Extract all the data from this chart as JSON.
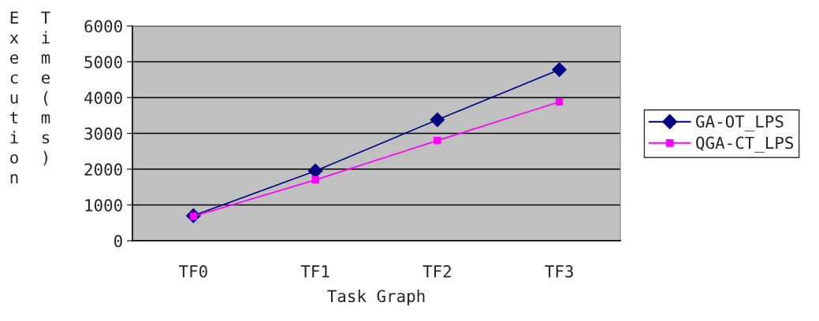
{
  "chart_data": {
    "type": "line",
    "xlabel": "Task Graph",
    "ylabel": "Execution Time(ms)",
    "categories": [
      "TF0",
      "TF1",
      "TF2",
      "TF3"
    ],
    "series": [
      {
        "name": "GA-OT_LPS",
        "color": "#000080",
        "marker": "diamond",
        "values": [
          700,
          1950,
          3380,
          4780
        ]
      },
      {
        "name": "QGA-CT_LPS",
        "color": "#ff00ff",
        "marker": "square",
        "values": [
          680,
          1700,
          2800,
          3880
        ]
      }
    ],
    "ylim": [
      0,
      6000
    ],
    "yticks": [
      0,
      1000,
      2000,
      3000,
      4000,
      5000,
      6000
    ],
    "grid": "y",
    "legend": "right"
  }
}
